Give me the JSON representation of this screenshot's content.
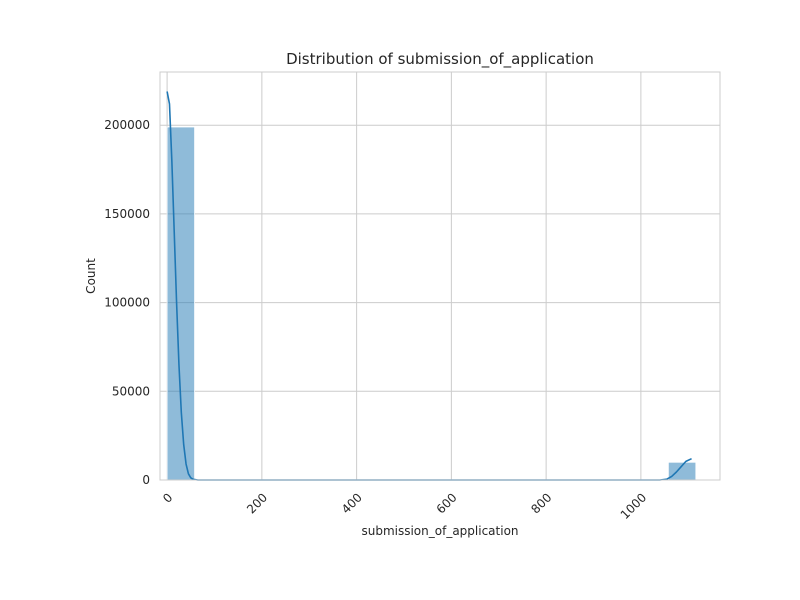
{
  "chart_data": {
    "type": "bar",
    "subtype": "histogram",
    "title": "Distribution of submission_of_application",
    "xlabel": "submission_of_application",
    "ylabel": "Count",
    "xlim": [
      -15,
      1167
    ],
    "ylim": [
      0,
      230000
    ],
    "xticks": [
      0,
      200,
      400,
      600,
      800,
      1000
    ],
    "xtick_labels": [
      "0",
      "200",
      "400",
      "600",
      "800",
      "1000"
    ],
    "yticks": [
      0,
      50000,
      100000,
      150000,
      200000
    ],
    "ytick_labels": [
      "0",
      "50000",
      "100000",
      "150000",
      "200000"
    ],
    "grid": true,
    "bins": [
      {
        "x0": 0,
        "x1": 58,
        "count": 199000
      },
      {
        "x0": 1058,
        "x1": 1116,
        "count": 10000
      }
    ],
    "kde": [
      [
        0,
        219000
      ],
      [
        5,
        212000
      ],
      [
        10,
        180000
      ],
      [
        15,
        140000
      ],
      [
        20,
        100000
      ],
      [
        25,
        65000
      ],
      [
        30,
        38000
      ],
      [
        35,
        20000
      ],
      [
        40,
        9000
      ],
      [
        45,
        3500
      ],
      [
        50,
        1200
      ],
      [
        55,
        400
      ],
      [
        65,
        0
      ],
      [
        1040,
        0
      ],
      [
        1055,
        500
      ],
      [
        1065,
        2000
      ],
      [
        1075,
        4500
      ],
      [
        1085,
        7500
      ],
      [
        1095,
        10500
      ],
      [
        1107,
        12000
      ]
    ],
    "colors": {
      "bar_fill": "#1f77b4",
      "bar_alpha": 0.5,
      "kde_line": "#1f77b4",
      "grid": "#cccccc",
      "frame": "#cccccc"
    }
  }
}
